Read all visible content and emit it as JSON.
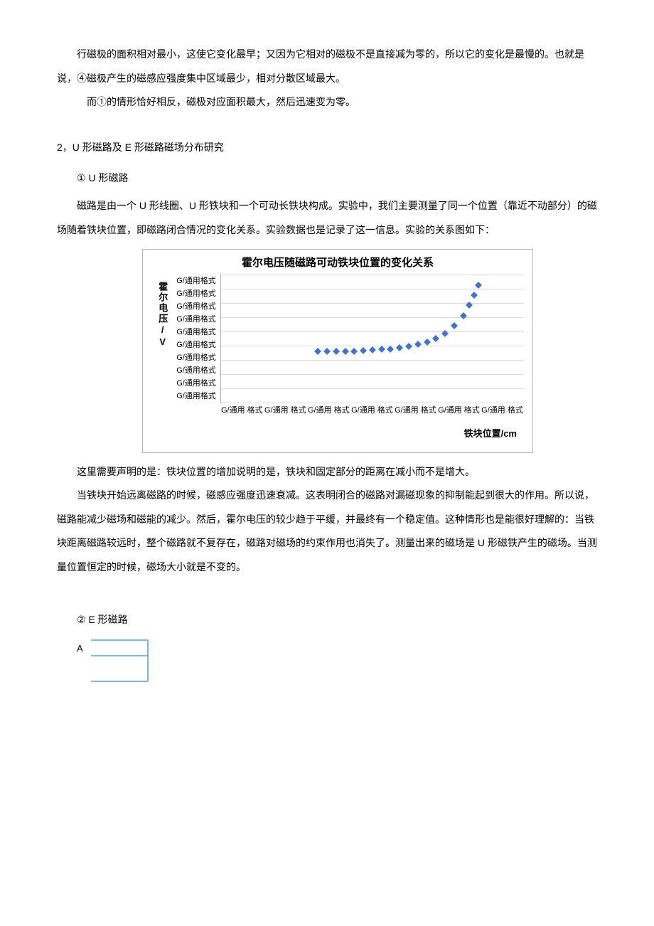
{
  "intro": {
    "p1": "行磁极的面积相对最小，这使它变化最早；又因为它相对的磁极不是直接减为零的，所以它的变化是最慢的。也就是说，④磁极产生的磁感应强度集中区域最少，相对分散区域最大。",
    "p2": "而①的情形恰好相反，磁极对应面积最大，然后迅速变为零。"
  },
  "section2": {
    "heading": "2，U 形磁路及 E 形磁路磁场分布研究",
    "sub1": {
      "label": "① U 形磁路",
      "p1": "磁路是由一个 U 形线圈、U 形铁块和一个可动长铁块构成。实验中，我们主要测量了同一个位置（靠近不动部分）的磁场随着铁块位置，即磁路闭合情况的变化关系。实验数据也是记录了这一信息。实验的关系图如下："
    },
    "chart": {
      "title": "霍尔电压随磁路可动铁块位置的变化关系",
      "y_label": "霍尔电压/V",
      "x_label": "铁块位置/cm",
      "y_ticks": [
        "G/通用格式",
        "G/通用格式",
        "G/通用格式",
        "G/通用格式",
        "G/通用格式",
        "G/通用格式",
        "G/通用格式",
        "G/通用格式",
        "G/通用格式",
        "G/通用格式"
      ],
      "x_ticks": [
        "G/通用 格式",
        "G/通用 格式",
        "G/通用 格式",
        "G/通用 格式",
        "G/通用 格式",
        "G/通用 格式",
        "G/通用 格式"
      ],
      "series_color": "#4472c4",
      "grid_color": "#d8d8d8",
      "points": [
        {
          "x": 32,
          "y": 40
        },
        {
          "x": 35,
          "y": 40
        },
        {
          "x": 38,
          "y": 40
        },
        {
          "x": 41,
          "y": 40
        },
        {
          "x": 44,
          "y": 40
        },
        {
          "x": 47,
          "y": 40.5
        },
        {
          "x": 50,
          "y": 41
        },
        {
          "x": 53,
          "y": 41.5
        },
        {
          "x": 56,
          "y": 42
        },
        {
          "x": 59,
          "y": 43
        },
        {
          "x": 62,
          "y": 44
        },
        {
          "x": 65,
          "y": 45.5
        },
        {
          "x": 68,
          "y": 47.5
        },
        {
          "x": 71,
          "y": 50
        },
        {
          "x": 74,
          "y": 54
        },
        {
          "x": 77,
          "y": 60
        },
        {
          "x": 80,
          "y": 68
        },
        {
          "x": 82,
          "y": 76
        },
        {
          "x": 83.5,
          "y": 84
        },
        {
          "x": 85,
          "y": 92
        }
      ]
    },
    "after_chart": {
      "p1": "这里需要声明的是：铁块位置的增加说明的是，铁块和固定部分的距离在减小而不是增大。",
      "p2": "当铁块开始远离磁路的时候，磁感应强度迅速衰减。这表明闭合的磁路对漏磁现象的抑制能起到很大的作用。所以说，磁路能减少磁场和磁能的减少。然后，霍尔电压的较少趋于平缓，并最终有一个稳定值。这种情形也是能很好理解的：当铁块距离磁路较远时，整个磁路就不复存在，磁路对磁场的约束作用也消失了。测量出来的磁场是 U 形磁铁产生的磁场。当测量位置恒定的时候，磁场大小就是不变的。"
    },
    "sub2": {
      "label": "② E 形磁路",
      "diagram_label_A": "A",
      "diagram_stroke": "#5b9bd5"
    }
  }
}
